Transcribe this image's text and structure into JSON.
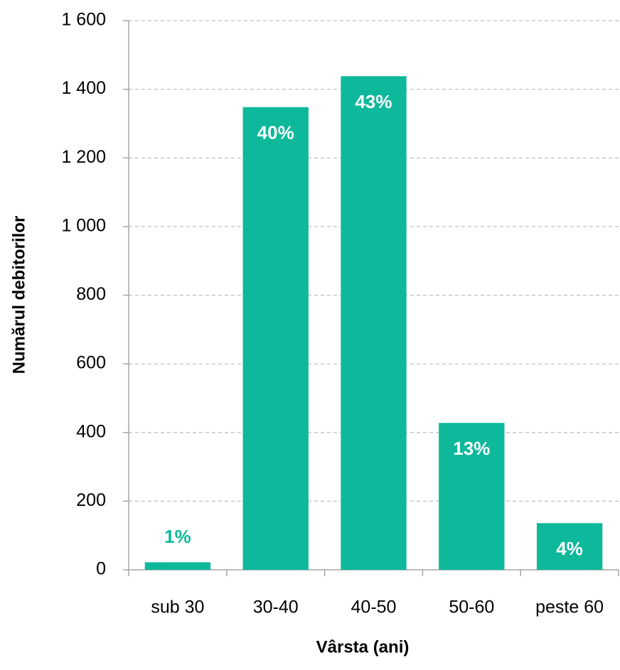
{
  "chart_data": {
    "type": "bar",
    "x_label": "Vârsta (ani)",
    "y_label": "Numărul debitorilor",
    "categories": [
      "sub 30",
      "30-40",
      "40-50",
      "50-60",
      "peste 60"
    ],
    "values": [
      22,
      1348,
      1438,
      428,
      136
    ],
    "share_labels": [
      "1%",
      "40%",
      "43%",
      "13%",
      "4%"
    ],
    "color": "#0eb89b",
    "ylim": [
      0,
      1600
    ],
    "yticks": [
      0,
      200,
      400,
      600,
      800,
      {
        "value": 1000,
        "label": "1 000"
      },
      {
        "value": 1200,
        "label": "1 200"
      },
      {
        "value": 1400,
        "label": "1 400"
      },
      {
        "value": 1600,
        "label": "1 600"
      }
    ],
    "grid": true
  }
}
